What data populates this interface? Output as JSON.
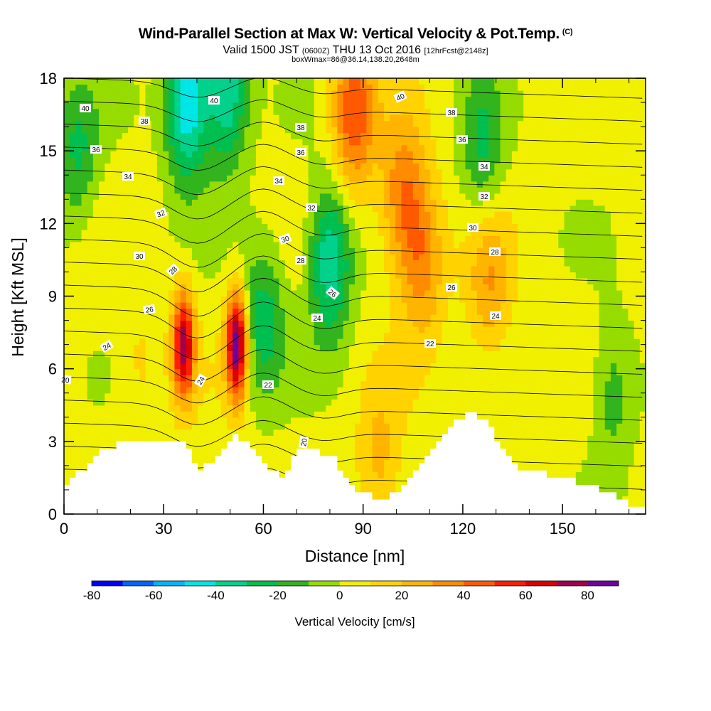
{
  "header": {
    "title": "Wind-Parallel Section at Max W: Vertical Velocity & Pot.Temp.",
    "title_mark": "(C)",
    "valid_prefix": "Valid 1500 JST",
    "valid_utc": "(0600Z)",
    "valid_date": "THU 13 Oct 2016",
    "forecast": "[12hrFcst@2148z]",
    "box_info": "boxWmax=86@36.14,138.20,2648m"
  },
  "chart_data": {
    "type": "heatmap",
    "xlabel": "Distance [nm]",
    "ylabel": "Height [Kft MSL]",
    "xlim": [
      0,
      175
    ],
    "ylim": [
      0,
      18
    ],
    "xticks": [
      0,
      30,
      60,
      90,
      120,
      150
    ],
    "yticks": [
      0,
      3,
      6,
      9,
      12,
      15,
      18
    ],
    "colorbar": {
      "label": "Vertical Velocity [cm/s]",
      "ticks": [
        -80,
        -60,
        -40,
        -20,
        0,
        20,
        40,
        60,
        80
      ],
      "levels": [
        -80,
        -70,
        -60,
        -50,
        -40,
        -30,
        -20,
        -10,
        0,
        10,
        20,
        30,
        40,
        50,
        60,
        70,
        80,
        90
      ],
      "colors": [
        "#0000ff",
        "#0064ff",
        "#00b4ff",
        "#00e6e6",
        "#00d28c",
        "#00be50",
        "#32b41e",
        "#96dc00",
        "#f0f000",
        "#ffd200",
        "#ffb400",
        "#ff8c00",
        "#ff5a00",
        "#ff1e00",
        "#dc0000",
        "#a00050",
        "#6e00a0"
      ]
    },
    "terrain_height_kft": {
      "x": [
        0,
        5,
        10,
        15,
        20,
        25,
        30,
        35,
        40,
        45,
        50,
        55,
        60,
        65,
        70,
        75,
        80,
        85,
        90,
        95,
        100,
        105,
        110,
        115,
        120,
        125,
        130,
        135,
        140,
        145,
        150,
        155,
        160,
        165,
        170,
        175
      ],
      "y": [
        1.3,
        1.8,
        2.6,
        2.9,
        2.9,
        2.9,
        2.9,
        2.9,
        1.9,
        2.2,
        3.2,
        3.0,
        2.0,
        1.6,
        2.6,
        2.6,
        2.4,
        1.2,
        0.8,
        0.6,
        0.9,
        1.8,
        2.6,
        3.4,
        4.2,
        4.0,
        3.0,
        2.0,
        1.8,
        1.6,
        1.5,
        1.3,
        1.1,
        0.8,
        0.4,
        0.3
      ]
    },
    "vertical_velocity_features": [
      {
        "kind": "updraft",
        "x": 36,
        "y": 7.0,
        "peak": 70
      },
      {
        "kind": "updraft",
        "x": 52,
        "y": 7.0,
        "peak": 86
      },
      {
        "kind": "updraft",
        "x": 87,
        "y": 16.5,
        "peak": 45
      },
      {
        "kind": "updraft",
        "x": 102,
        "y": 13.0,
        "peak": 35
      },
      {
        "kind": "updraft",
        "x": 108,
        "y": 10.5,
        "peak": 30
      },
      {
        "kind": "updraft",
        "x": 128,
        "y": 9.5,
        "peak": 25
      },
      {
        "kind": "updraft",
        "x": 22,
        "y": 6.0,
        "peak": 10
      },
      {
        "kind": "updraft",
        "x": 95,
        "y": 2.0,
        "peak": 20
      },
      {
        "kind": "downdraft",
        "x": 37,
        "y": 17.0,
        "peak": -55
      },
      {
        "kind": "downdraft",
        "x": 49,
        "y": 17.5,
        "peak": -45
      },
      {
        "kind": "downdraft",
        "x": 80,
        "y": 10.5,
        "peak": -45
      },
      {
        "kind": "downdraft",
        "x": 60,
        "y": 8.0,
        "peak": -30
      },
      {
        "kind": "downdraft",
        "x": 4,
        "y": 15.0,
        "peak": -25
      },
      {
        "kind": "downdraft",
        "x": 126,
        "y": 15.0,
        "peak": -25
      },
      {
        "kind": "downdraft",
        "x": 165,
        "y": 5.0,
        "peak": -20
      }
    ],
    "pot_temp_contours": [
      {
        "value": 20,
        "label": "20",
        "label_pos": [
          92,
          534,
          5
        ]
      },
      {
        "value": 20,
        "label": "20",
        "label_pos": [
          427,
          622,
          -80
        ]
      },
      {
        "value": 22,
        "label": "22",
        "label_pos": [
          377,
          541,
          0
        ]
      },
      {
        "value": 22,
        "label": "22",
        "label_pos": [
          605,
          483,
          0
        ]
      },
      {
        "value": 24,
        "label": "24",
        "label_pos": [
          150,
          487,
          -30
        ]
      },
      {
        "value": 24,
        "label": "24",
        "label_pos": [
          282,
          535,
          -60
        ]
      },
      {
        "value": 24,
        "label": "24",
        "label_pos": [
          446,
          447,
          0
        ]
      },
      {
        "value": 24,
        "label": "24",
        "label_pos": [
          697,
          444,
          0
        ]
      },
      {
        "value": 26,
        "label": "26",
        "label_pos": [
          210,
          435,
          -10
        ]
      },
      {
        "value": 26,
        "label": "26",
        "label_pos": [
          468,
          412,
          40
        ]
      },
      {
        "value": 26,
        "label": "26",
        "label_pos": [
          635,
          404,
          0
        ]
      },
      {
        "value": 28,
        "label": "28",
        "label_pos": [
          243,
          380,
          -45
        ]
      },
      {
        "value": 28,
        "label": "28",
        "label_pos": [
          423,
          366,
          0
        ]
      },
      {
        "value": 28,
        "label": "28",
        "label_pos": [
          696,
          354,
          0
        ]
      },
      {
        "value": 30,
        "label": "30",
        "label_pos": [
          196,
          360,
          0
        ]
      },
      {
        "value": 30,
        "label": "30",
        "label_pos": [
          401,
          336,
          -20
        ]
      },
      {
        "value": 30,
        "label": "30",
        "label_pos": [
          665,
          320,
          0
        ]
      },
      {
        "value": 32,
        "label": "32",
        "label_pos": [
          226,
          300,
          -20
        ]
      },
      {
        "value": 32,
        "label": "32",
        "label_pos": [
          438,
          292,
          0
        ]
      },
      {
        "value": 32,
        "label": "32",
        "label_pos": [
          681,
          276,
          0
        ]
      },
      {
        "value": 34,
        "label": "34",
        "label_pos": [
          180,
          248,
          0
        ]
      },
      {
        "value": 34,
        "label": "34",
        "label_pos": [
          392,
          254,
          0
        ]
      },
      {
        "value": 34,
        "label": "34",
        "label_pos": [
          681,
          234,
          0
        ]
      },
      {
        "value": 36,
        "label": "36",
        "label_pos": [
          135,
          210,
          0
        ]
      },
      {
        "value": 36,
        "label": "36",
        "label_pos": [
          423,
          214,
          0
        ]
      },
      {
        "value": 36,
        "label": "36",
        "label_pos": [
          650,
          196,
          0
        ]
      },
      {
        "value": 38,
        "label": "38",
        "label_pos": [
          203,
          170,
          0
        ]
      },
      {
        "value": 38,
        "label": "38",
        "label_pos": [
          423,
          179,
          0
        ]
      },
      {
        "value": 38,
        "label": "38",
        "label_pos": [
          635,
          158,
          0
        ]
      },
      {
        "value": 40,
        "label": "40",
        "label_pos": [
          120,
          152,
          0
        ]
      },
      {
        "value": 40,
        "label": "40",
        "label_pos": [
          301,
          141,
          0
        ]
      },
      {
        "value": 40,
        "label": "40",
        "label_pos": [
          563,
          136,
          -25
        ]
      }
    ]
  }
}
